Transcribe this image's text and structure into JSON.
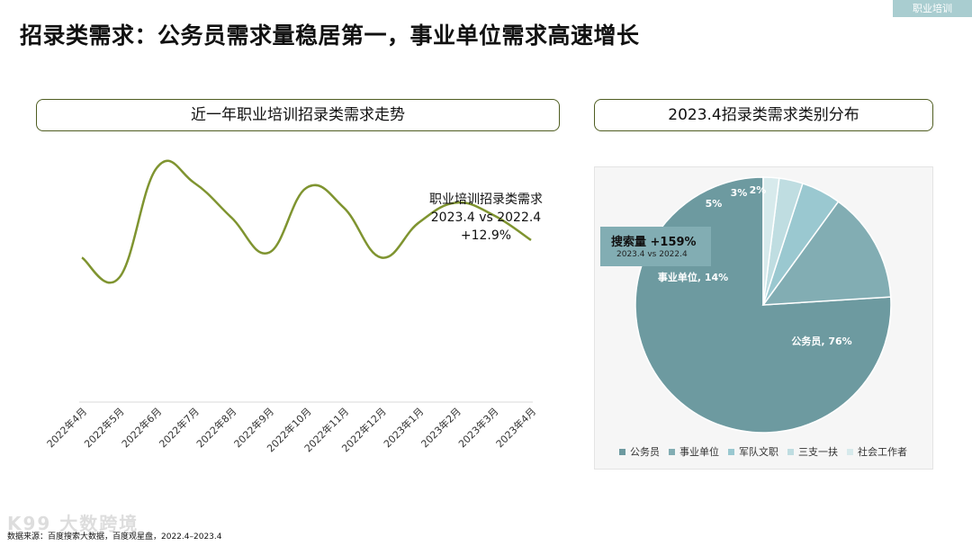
{
  "header": {
    "tag": "职业培训",
    "title": "招录类需求：公务员需求量稳居第一，事业单位需求高速增长"
  },
  "left_panel": {
    "heading": "近一年职业培训招录类需求走势",
    "annotation": {
      "line1": "职业培训招录类需求",
      "line2": "2023.4 vs 2022.4",
      "line3": "+12.9%"
    }
  },
  "right_panel": {
    "heading": "2023.4招录类需求类别分布",
    "callout": {
      "line1": "搜索量   +159%",
      "line2": "2023.4 vs 2022.4"
    }
  },
  "colors": {
    "line": "#7f9430",
    "accent_tag": "#a9cdd0",
    "pie": [
      "#6d9aa0",
      "#82adb3",
      "#9ac8d0",
      "#bfdde1",
      "#d7eaec"
    ]
  },
  "source": "数据来源：百度搜索大数据，百度观星盘，2022.4–2023.4",
  "watermark": "K99 大数跨境",
  "chart_data": [
    {
      "type": "line",
      "title": "",
      "categories": [
        "2022年4月",
        "2022年5月",
        "2022年6月",
        "2022年7月",
        "2022年8月",
        "2022年9月",
        "2022年10月",
        "2022年11月",
        "2022年12月",
        "2023年1月",
        "2023年2月",
        "2023年3月",
        "2023年4月"
      ],
      "series": [
        {
          "values": [
            58,
            50,
            94,
            88,
            74,
            60,
            86,
            78,
            58,
            72,
            80,
            75,
            65
          ]
        }
      ],
      "ylim": [
        0,
        100
      ],
      "xlabel": "",
      "ylabel": "",
      "grid": false
    },
    {
      "type": "pie",
      "title": "",
      "slices": [
        {
          "name": "公务员",
          "value": 76,
          "label": "公务员, 76%"
        },
        {
          "name": "事业单位",
          "value": 14,
          "label": "事业单位, 14%"
        },
        {
          "name": "军队文职",
          "value": 5,
          "label": "5%"
        },
        {
          "name": "三支一扶",
          "value": 3,
          "label": "3%"
        },
        {
          "name": "社会工作者",
          "value": 2,
          "label": "2%"
        }
      ],
      "legend": "bottom"
    }
  ]
}
